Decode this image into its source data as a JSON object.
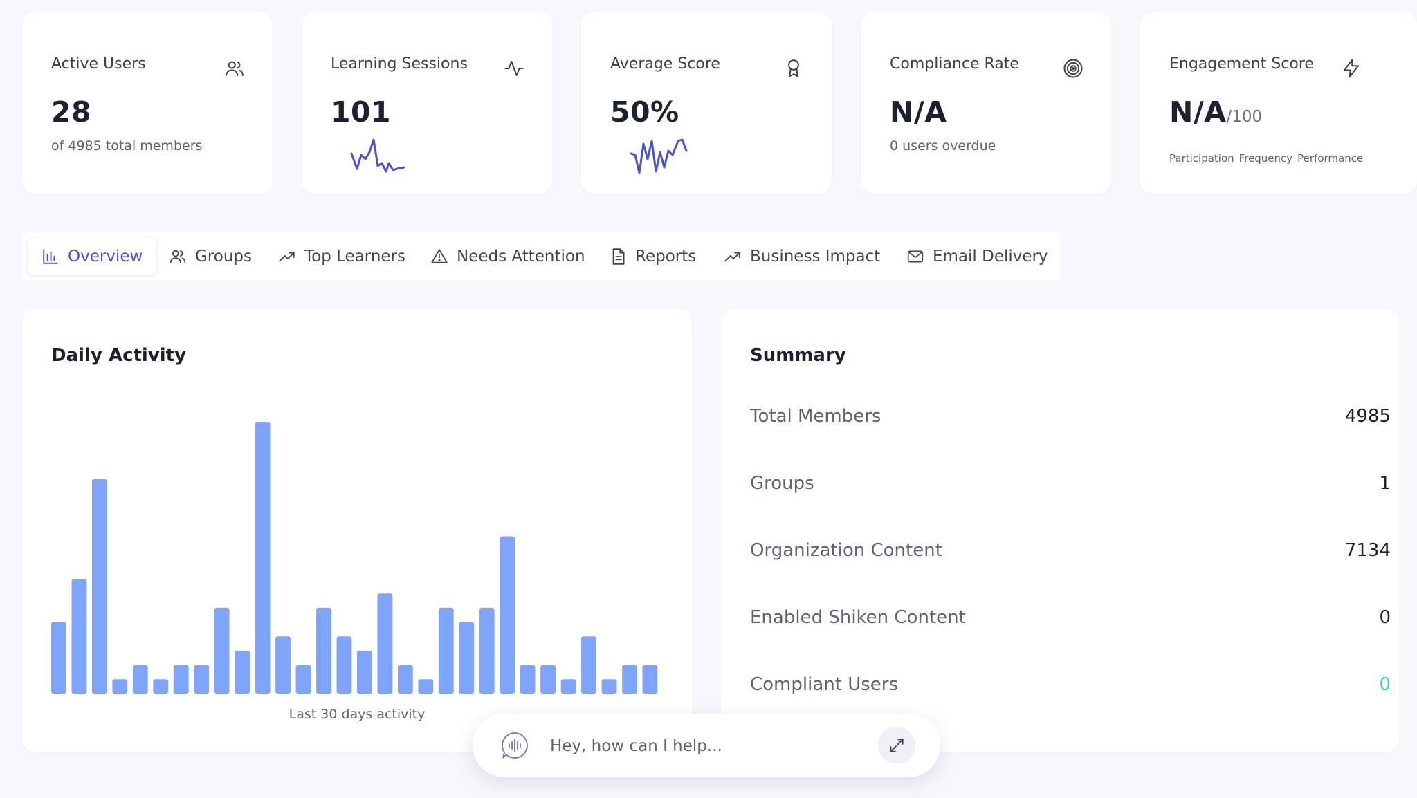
{
  "stats": [
    {
      "title": "Active Users",
      "value": "28",
      "sub": "of 4985 total members",
      "icon": "users-icon"
    },
    {
      "title": "Learning Sessions",
      "value": "101",
      "icon": "activity-icon"
    },
    {
      "title": "Average Score",
      "value": "50%",
      "icon": "award-icon"
    },
    {
      "title": "Compliance Rate",
      "value": "N/A",
      "sub": "0 users overdue",
      "icon": "target-icon"
    },
    {
      "title": "Engagement Score",
      "value": "N/A",
      "value_suffix": "/100",
      "icon": "zap-icon",
      "labels": [
        "Participation",
        "Frequency",
        "Performance"
      ]
    }
  ],
  "tabs": [
    {
      "label": "Overview",
      "icon": "bar-chart-icon",
      "active": true
    },
    {
      "label": "Groups",
      "icon": "users-icon"
    },
    {
      "label": "Top Learners",
      "icon": "trending-up-icon"
    },
    {
      "label": "Needs Attention",
      "icon": "alert-triangle-icon"
    },
    {
      "label": "Reports",
      "icon": "file-text-icon"
    },
    {
      "label": "Business Impact",
      "icon": "trending-up-icon"
    },
    {
      "label": "Email Delivery",
      "icon": "mail-icon"
    }
  ],
  "daily_activity": {
    "title": "Daily Activity",
    "caption": "Last 30 days activity"
  },
  "chart_data": {
    "type": "bar",
    "title": "Daily Activity",
    "xlabel": "Last 30 days activity",
    "values": [
      5,
      8,
      15,
      1,
      2,
      1,
      2,
      2,
      6,
      3,
      19,
      4,
      2,
      6,
      4,
      3,
      7,
      2,
      1,
      6,
      5,
      6,
      11,
      2,
      2,
      1,
      4,
      1,
      2,
      2
    ],
    "color": "#7fa5fb"
  },
  "summary": {
    "title": "Summary",
    "rows": [
      {
        "label": "Total Members",
        "value": "4985"
      },
      {
        "label": "Groups",
        "value": "1"
      },
      {
        "label": "Organization Content",
        "value": "7134"
      },
      {
        "label": "Enabled Shiken Content",
        "value": "0"
      },
      {
        "label": "Compliant Users",
        "value": "0",
        "color": "#3dd1b5"
      }
    ]
  },
  "assistant": {
    "placeholder": "Hey, how can I help...",
    "icon": "voice-icon",
    "expand_icon": "expand-icon"
  },
  "colors": {
    "accent": "#4a52d6",
    "bar": "#7fa5fb",
    "spark": "#4a52d6",
    "teal": "#3dd1b5"
  }
}
